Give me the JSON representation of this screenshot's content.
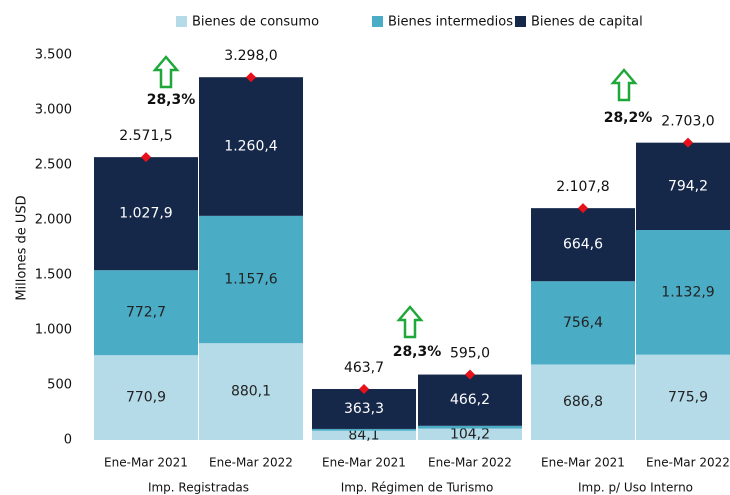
{
  "chart_data": {
    "type": "bar",
    "stacked": true,
    "y_label": "Millones de USD",
    "categories": [
      "Ene-Mar 2021",
      "Ene-Mar 2022",
      "Ene-Mar 2021",
      "Ene-Mar 2022",
      "Ene-Mar 2021",
      "Ene-Mar 2022"
    ],
    "groups": [
      "Imp. Registradas",
      "Imp. Régimen de Turismo",
      "Imp. p/ Uso Interno"
    ],
    "series": [
      {
        "name": "Bienes de consumo",
        "color": "#b5dbe8",
        "values": [
          770.9,
          880.1,
          84.1,
          104.2,
          686.8,
          775.9
        ],
        "value_labels": [
          "770,9",
          "880,1",
          "84,1",
          "104,2",
          "686,8",
          "775,9"
        ]
      },
      {
        "name": "Bienes intermedios",
        "color": "#4bacc6",
        "values": [
          772.7,
          1157.6,
          16.3,
          24.6,
          756.4,
          1132.9
        ],
        "value_labels": [
          "772,7",
          "1.157,6",
          null,
          null,
          "756,4",
          "1.132,9"
        ]
      },
      {
        "name": "Bienes de capital",
        "color": "#16284a",
        "values": [
          1027.9,
          1260.4,
          363.3,
          466.2,
          664.6,
          794.2
        ],
        "value_labels": [
          "1.027,9",
          "1.260,4",
          "363,3",
          "466,2",
          "664,6",
          "794,2"
        ]
      }
    ],
    "totals": {
      "color": "#e8101a",
      "values": [
        2571.5,
        3298.0,
        463.7,
        595.0,
        2107.8,
        2703.0
      ],
      "value_labels": [
        "2.571,5",
        "3.298,0",
        "463,7",
        "595,0",
        "2.107,8",
        "2.703,0"
      ]
    },
    "annotations": [
      "28,3%",
      "28,3%",
      "28,2%"
    ],
    "ylim": [
      0,
      3500
    ],
    "yticks": [
      0,
      500,
      {
        "value": 1000,
        "label": "1.000"
      },
      {
        "value": 1500,
        "label": "1.500"
      },
      {
        "value": 2000,
        "label": "2.000"
      },
      {
        "value": 2500,
        "label": "2.500"
      },
      {
        "value": 3000,
        "label": "3.000"
      },
      {
        "value": 3500,
        "label": "3.500"
      }
    ],
    "legend": "top"
  }
}
